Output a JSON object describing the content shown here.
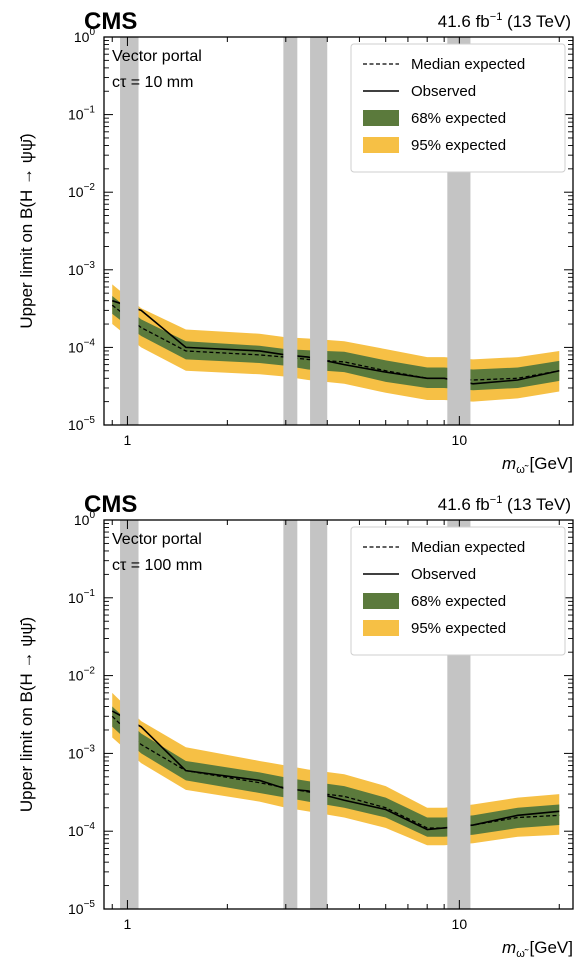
{
  "chart_data": [
    {
      "type": "line",
      "experiment": "CMS",
      "luminosity": "41.6 fb",
      "lumi_exp": "−1",
      "energy": "(13 TeV)",
      "annotation": [
        "Vector portal",
        "cτ = 10 mm"
      ],
      "xlabel": "m",
      "xlabel_sub": "ω̃",
      "xlabel_unit": "[GeV]",
      "ylabel": "Upper limit on B(H → ψψ̄)",
      "xscale": "log",
      "yscale": "log",
      "xlim": [
        0.85,
        22
      ],
      "ylim": [
        1e-05,
        1
      ],
      "xticks": [
        "1",
        "10"
      ],
      "yticks": [
        "10",
        "10",
        "10",
        "10",
        "10",
        "10"
      ],
      "ytick_exps": [
        "0",
        "−1",
        "−2",
        "−3",
        "−4",
        "−5"
      ],
      "legend_position": "top-right",
      "legend": [
        "Median expected",
        "Observed",
        "68% expected",
        "95% expected"
      ],
      "excluded_mass_ranges": [
        [
          0.95,
          1.08
        ],
        [
          2.95,
          3.25
        ],
        [
          3.55,
          4.0
        ],
        [
          9.2,
          10.8
        ]
      ],
      "x": [
        0.9,
        1.1,
        1.5,
        2.5,
        3.0,
        3.5,
        4.5,
        6.0,
        8.0,
        9.0,
        11.0,
        15.0,
        20.0
      ],
      "series": [
        {
          "name": "Median expected",
          "values": [
            0.00035,
            0.00018,
            9e-05,
            8e-05,
            7.5e-05,
            7e-05,
            6.5e-05,
            5e-05,
            4e-05,
            4e-05,
            3.8e-05,
            4e-05,
            5e-05
          ]
        },
        {
          "name": "Observed",
          "values": [
            0.0004,
            0.0003,
            0.0001,
            9e-05,
            8e-05,
            7.5e-05,
            6e-05,
            4.8e-05,
            4e-05,
            4e-05,
            3.4e-05,
            3.8e-05,
            5e-05
          ]
        },
        {
          "name": "68% expected",
          "low": [
            0.00027,
            0.00014,
            7e-05,
            6.3e-05,
            5.8e-05,
            5.2e-05,
            4.8e-05,
            3.6e-05,
            3e-05,
            3e-05,
            2.8e-05,
            3e-05,
            3.7e-05
          ],
          "high": [
            0.00046,
            0.00023,
            0.00012,
            0.000105,
            9.5e-05,
            9.2e-05,
            8.8e-05,
            6.8e-05,
            5.5e-05,
            5.5e-05,
            5.2e-05,
            5.5e-05,
            6.7e-05
          ]
        },
        {
          "name": "95% expected",
          "low": [
            0.0002,
            0.0001,
            5e-05,
            4.5e-05,
            4.2e-05,
            3.8e-05,
            3.4e-05,
            2.6e-05,
            2.1e-05,
            2.1e-05,
            2e-05,
            2.2e-05,
            2.7e-05
          ],
          "high": [
            0.00065,
            0.00032,
            0.00017,
            0.00015,
            0.000135,
            0.00013,
            0.00012,
            9.5e-05,
            7.5e-05,
            7.5e-05,
            7e-05,
            7.5e-05,
            9e-05
          ]
        }
      ]
    },
    {
      "type": "line",
      "experiment": "CMS",
      "luminosity": "41.6 fb",
      "lumi_exp": "−1",
      "energy": "(13 TeV)",
      "annotation": [
        "Vector portal",
        "cτ = 100 mm"
      ],
      "xlabel": "m",
      "xlabel_sub": "ω̃",
      "xlabel_unit": "[GeV]",
      "ylabel": "Upper limit on B(H → ψψ̄)",
      "xscale": "log",
      "yscale": "log",
      "xlim": [
        0.85,
        22
      ],
      "ylim": [
        1e-05,
        1
      ],
      "xticks": [
        "1",
        "10"
      ],
      "yticks": [
        "10",
        "10",
        "10",
        "10",
        "10",
        "10"
      ],
      "ytick_exps": [
        "0",
        "−1",
        "−2",
        "−3",
        "−4",
        "−5"
      ],
      "legend_position": "top-right",
      "legend": [
        "Median expected",
        "Observed",
        "68% expected",
        "95% expected"
      ],
      "excluded_mass_ranges": [
        [
          0.95,
          1.08
        ],
        [
          2.95,
          3.25
        ],
        [
          3.55,
          4.0
        ],
        [
          9.2,
          10.8
        ]
      ],
      "x": [
        0.9,
        1.1,
        1.5,
        2.5,
        3.0,
        3.5,
        4.5,
        6.0,
        8.0,
        9.0,
        11.0,
        15.0,
        20.0
      ],
      "series": [
        {
          "name": "Median expected",
          "values": [
            0.003,
            0.0013,
            0.0006,
            0.00042,
            0.00036,
            0.00032,
            0.00028,
            0.0002,
            0.00011,
            0.00011,
            0.00012,
            0.00015,
            0.00016
          ]
        },
        {
          "name": "Observed",
          "values": [
            0.0035,
            0.0022,
            0.0006,
            0.00045,
            0.00035,
            0.00033,
            0.00025,
            0.00019,
            0.000105,
            0.00011,
            0.00012,
            0.00016,
            0.00018
          ]
        },
        {
          "name": "68% expected",
          "low": [
            0.0022,
            0.001,
            0.00045,
            0.00031,
            0.00027,
            0.00024,
            0.0002,
            0.00015,
            8.5e-05,
            8.5e-05,
            9e-05,
            0.00011,
            0.00012
          ],
          "high": [
            0.004,
            0.0018,
            0.0008,
            0.00057,
            0.00049,
            0.00044,
            0.00038,
            0.00027,
            0.00015,
            0.00015,
            0.00016,
            0.0002,
            0.00022
          ]
        },
        {
          "name": "95% expected",
          "low": [
            0.0016,
            0.00075,
            0.00034,
            0.00024,
            0.0002,
            0.00018,
            0.00015,
            0.00011,
            6.6e-05,
            6.6e-05,
            7e-05,
            8.5e-05,
            9e-05
          ],
          "high": [
            0.006,
            0.0026,
            0.0012,
            0.0008,
            0.0007,
            0.00062,
            0.00054,
            0.00038,
            0.0002,
            0.0002,
            0.00022,
            0.00027,
            0.0003
          ]
        }
      ]
    }
  ],
  "colors": {
    "band68": "#5b7a3c",
    "band95": "#f6c045",
    "excluded": "#c4c4c4",
    "line": "#000000"
  }
}
